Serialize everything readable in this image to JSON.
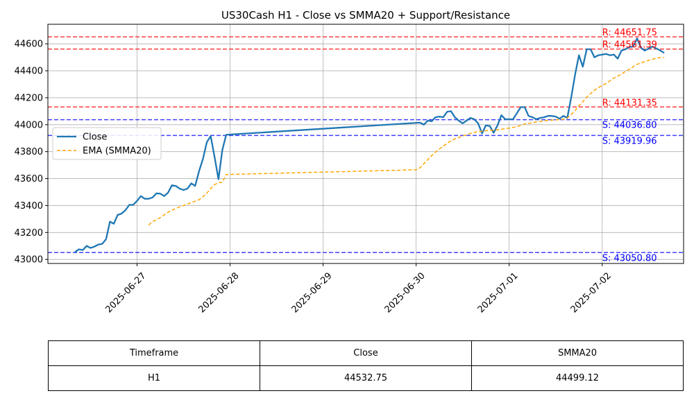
{
  "chart_data": {
    "type": "line",
    "title": "US30Cash H1 - Close vs SMMA20 + Support/Resistance",
    "xlabel": "",
    "ylabel": "",
    "x_range": [
      "2025-06-26T01:00",
      "2025-07-02T21:00"
    ],
    "ylim": [
      42970,
      44745
    ],
    "x_ticks": [
      "2025-06-27",
      "2025-06-28",
      "2025-06-29",
      "2025-06-30",
      "2025-07-01",
      "2025-07-02"
    ],
    "y_ticks": [
      43000,
      43200,
      43400,
      43600,
      43800,
      44000,
      44200,
      44400,
      44600
    ],
    "grid": true,
    "legend": {
      "placement": "center-left",
      "entries": [
        "Close",
        "EMA (SMMA20)"
      ]
    },
    "colors": {
      "close": "#1f77b4",
      "smma": "#ffa500",
      "resistance": "#ff0000",
      "support": "#0000ff"
    },
    "series": [
      {
        "name": "Close",
        "points": [
          [
            "2025-06-26T08:00",
            43055
          ],
          [
            "2025-06-26T09:00",
            43075
          ],
          [
            "2025-06-26T10:00",
            43070
          ],
          [
            "2025-06-26T11:00",
            43100
          ],
          [
            "2025-06-26T12:00",
            43085
          ],
          [
            "2025-06-26T13:00",
            43095
          ],
          [
            "2025-06-26T14:00",
            43110
          ],
          [
            "2025-06-26T15:00",
            43115
          ],
          [
            "2025-06-26T16:00",
            43150
          ],
          [
            "2025-06-26T17:00",
            43280
          ],
          [
            "2025-06-26T18:00",
            43265
          ],
          [
            "2025-06-26T19:00",
            43330
          ],
          [
            "2025-06-26T20:00",
            43340
          ],
          [
            "2025-06-26T21:00",
            43365
          ],
          [
            "2025-06-26T22:00",
            43405
          ],
          [
            "2025-06-26T23:00",
            43405
          ],
          [
            "2025-06-27T00:00",
            43435
          ],
          [
            "2025-06-27T01:00",
            43470
          ],
          [
            "2025-06-27T02:00",
            43450
          ],
          [
            "2025-06-27T03:00",
            43450
          ],
          [
            "2025-06-27T04:00",
            43460
          ],
          [
            "2025-06-27T05:00",
            43490
          ],
          [
            "2025-06-27T06:00",
            43488
          ],
          [
            "2025-06-27T07:00",
            43470
          ],
          [
            "2025-06-27T08:00",
            43495
          ],
          [
            "2025-06-27T09:00",
            43550
          ],
          [
            "2025-06-27T10:00",
            43545
          ],
          [
            "2025-06-27T11:00",
            43525
          ],
          [
            "2025-06-27T12:00",
            43515
          ],
          [
            "2025-06-27T13:00",
            43525
          ],
          [
            "2025-06-27T14:00",
            43565
          ],
          [
            "2025-06-27T15:00",
            43545
          ],
          [
            "2025-06-27T16:00",
            43655
          ],
          [
            "2025-06-27T17:00",
            43745
          ],
          [
            "2025-06-27T18:00",
            43870
          ],
          [
            "2025-06-27T19:00",
            43915
          ],
          [
            "2025-06-27T20:00",
            43760
          ],
          [
            "2025-06-27T21:00",
            43595
          ],
          [
            "2025-06-27T22:00",
            43810
          ],
          [
            "2025-06-27T23:00",
            43925
          ],
          [
            "2025-06-30T01:00",
            44015
          ],
          [
            "2025-06-30T02:00",
            44000
          ],
          [
            "2025-06-30T03:00",
            44030
          ],
          [
            "2025-06-30T04:00",
            44025
          ],
          [
            "2025-06-30T05:00",
            44055
          ],
          [
            "2025-06-30T06:00",
            44060
          ],
          [
            "2025-06-30T07:00",
            44055
          ],
          [
            "2025-06-30T08:00",
            44095
          ],
          [
            "2025-06-30T09:00",
            44100
          ],
          [
            "2025-06-30T10:00",
            44055
          ],
          [
            "2025-06-30T11:00",
            44030
          ],
          [
            "2025-06-30T12:00",
            44010
          ],
          [
            "2025-06-30T13:00",
            44030
          ],
          [
            "2025-06-30T14:00",
            44050
          ],
          [
            "2025-06-30T15:00",
            44040
          ],
          [
            "2025-06-30T16:00",
            44010
          ],
          [
            "2025-06-30T17:00",
            43935
          ],
          [
            "2025-06-30T18:00",
            43995
          ],
          [
            "2025-06-30T19:00",
            43990
          ],
          [
            "2025-06-30T20:00",
            43940
          ],
          [
            "2025-06-30T21:00",
            43995
          ],
          [
            "2025-06-30T22:00",
            44070
          ],
          [
            "2025-06-30T23:00",
            44040
          ],
          [
            "2025-07-01T00:00",
            44040
          ],
          [
            "2025-07-01T01:00",
            44040
          ],
          [
            "2025-07-01T02:00",
            44085
          ],
          [
            "2025-07-01T03:00",
            44130
          ],
          [
            "2025-07-01T04:00",
            44130
          ],
          [
            "2025-07-01T05:00",
            44065
          ],
          [
            "2025-07-01T06:00",
            44055
          ],
          [
            "2025-07-01T07:00",
            44040
          ],
          [
            "2025-07-01T08:00",
            44050
          ],
          [
            "2025-07-01T09:00",
            44055
          ],
          [
            "2025-07-01T10:00",
            44065
          ],
          [
            "2025-07-01T11:00",
            44065
          ],
          [
            "2025-07-01T12:00",
            44060
          ],
          [
            "2025-07-01T13:00",
            44045
          ],
          [
            "2025-07-01T14:00",
            44065
          ],
          [
            "2025-07-01T15:00",
            44050
          ],
          [
            "2025-07-01T16:00",
            44200
          ],
          [
            "2025-07-01T17:00",
            44370
          ],
          [
            "2025-07-01T18:00",
            44515
          ],
          [
            "2025-07-01T19:00",
            44430
          ],
          [
            "2025-07-01T20:00",
            44560
          ],
          [
            "2025-07-01T21:00",
            44560
          ],
          [
            "2025-07-01T22:00",
            44500
          ],
          [
            "2025-07-01T23:00",
            44515
          ],
          [
            "2025-07-02T00:00",
            44520
          ],
          [
            "2025-07-02T01:00",
            44525
          ],
          [
            "2025-07-02T02:00",
            44515
          ],
          [
            "2025-07-02T03:00",
            44520
          ],
          [
            "2025-07-02T04:00",
            44490
          ],
          [
            "2025-07-02T05:00",
            44550
          ],
          [
            "2025-07-02T06:00",
            44560
          ],
          [
            "2025-07-02T07:00",
            44575
          ],
          [
            "2025-07-02T08:00",
            44580
          ],
          [
            "2025-07-02T09:00",
            44640
          ],
          [
            "2025-07-02T10:00",
            44570
          ],
          [
            "2025-07-02T11:00",
            44550
          ],
          [
            "2025-07-02T12:00",
            44565
          ],
          [
            "2025-07-02T13:00",
            44580
          ],
          [
            "2025-07-02T14:00",
            44565
          ],
          [
            "2025-07-02T15:00",
            44550
          ],
          [
            "2025-07-02T16:00",
            44532.75
          ]
        ]
      },
      {
        "name": "EMA (SMMA20)",
        "points": [
          [
            "2025-06-27T03:00",
            43255
          ],
          [
            "2025-06-27T04:00",
            43280
          ],
          [
            "2025-06-27T05:00",
            43295
          ],
          [
            "2025-06-27T06:00",
            43310
          ],
          [
            "2025-06-27T07:00",
            43330
          ],
          [
            "2025-06-27T08:00",
            43350
          ],
          [
            "2025-06-27T09:00",
            43365
          ],
          [
            "2025-06-27T10:00",
            43378
          ],
          [
            "2025-06-27T11:00",
            43390
          ],
          [
            "2025-06-27T12:00",
            43400
          ],
          [
            "2025-06-27T13:00",
            43410
          ],
          [
            "2025-06-27T14:00",
            43422
          ],
          [
            "2025-06-27T15:00",
            43432
          ],
          [
            "2025-06-27T16:00",
            43443
          ],
          [
            "2025-06-27T17:00",
            43465
          ],
          [
            "2025-06-27T18:00",
            43492
          ],
          [
            "2025-06-27T19:00",
            43525
          ],
          [
            "2025-06-27T20:00",
            43555
          ],
          [
            "2025-06-27T21:00",
            43570
          ],
          [
            "2025-06-27T22:00",
            43572
          ],
          [
            "2025-06-27T23:00",
            43630
          ],
          [
            "2025-06-30T00:00",
            43665
          ],
          [
            "2025-06-30T01:00",
            43680
          ],
          [
            "2025-06-30T02:00",
            43710
          ],
          [
            "2025-06-30T03:00",
            43740
          ],
          [
            "2025-06-30T04:00",
            43770
          ],
          [
            "2025-06-30T05:00",
            43795
          ],
          [
            "2025-06-30T06:00",
            43820
          ],
          [
            "2025-06-30T07:00",
            43840
          ],
          [
            "2025-06-30T08:00",
            43862
          ],
          [
            "2025-06-30T09:00",
            43880
          ],
          [
            "2025-06-30T10:00",
            43895
          ],
          [
            "2025-06-30T11:00",
            43905
          ],
          [
            "2025-06-30T12:00",
            43915
          ],
          [
            "2025-06-30T13:00",
            43925
          ],
          [
            "2025-06-30T14:00",
            43935
          ],
          [
            "2025-06-30T15:00",
            43942
          ],
          [
            "2025-06-30T16:00",
            43950
          ],
          [
            "2025-06-30T17:00",
            43950
          ],
          [
            "2025-06-30T18:00",
            43955
          ],
          [
            "2025-06-30T19:00",
            43958
          ],
          [
            "2025-06-30T20:00",
            43960
          ],
          [
            "2025-06-30T21:00",
            43962
          ],
          [
            "2025-06-30T22:00",
            43966
          ],
          [
            "2025-06-30T23:00",
            43970
          ],
          [
            "2025-07-01T00:00",
            43975
          ],
          [
            "2025-07-01T01:00",
            43980
          ],
          [
            "2025-07-01T02:00",
            43985
          ],
          [
            "2025-07-01T03:00",
            43995
          ],
          [
            "2025-07-01T04:00",
            44005
          ],
          [
            "2025-07-01T05:00",
            44010
          ],
          [
            "2025-07-01T06:00",
            44015
          ],
          [
            "2025-07-01T07:00",
            44020
          ],
          [
            "2025-07-01T08:00",
            44024
          ],
          [
            "2025-07-01T09:00",
            44028
          ],
          [
            "2025-07-01T10:00",
            44031
          ],
          [
            "2025-07-01T11:00",
            44034
          ],
          [
            "2025-07-01T12:00",
            44036
          ],
          [
            "2025-07-01T13:00",
            44037
          ],
          [
            "2025-07-01T14:00",
            44040
          ],
          [
            "2025-07-01T15:00",
            44050
          ],
          [
            "2025-07-01T16:00",
            44075
          ],
          [
            "2025-07-01T17:00",
            44105
          ],
          [
            "2025-07-01T18:00",
            44140
          ],
          [
            "2025-07-01T19:00",
            44170
          ],
          [
            "2025-07-01T20:00",
            44205
          ],
          [
            "2025-07-01T21:00",
            44230
          ],
          [
            "2025-07-01T22:00",
            44255
          ],
          [
            "2025-07-01T23:00",
            44275
          ],
          [
            "2025-07-02T00:00",
            44290
          ],
          [
            "2025-07-02T01:00",
            44305
          ],
          [
            "2025-07-02T02:00",
            44325
          ],
          [
            "2025-07-02T03:00",
            44345
          ],
          [
            "2025-07-02T04:00",
            44360
          ],
          [
            "2025-07-02T05:00",
            44375
          ],
          [
            "2025-07-02T06:00",
            44395
          ],
          [
            "2025-07-02T07:00",
            44410
          ],
          [
            "2025-07-02T08:00",
            44430
          ],
          [
            "2025-07-02T09:00",
            44448
          ],
          [
            "2025-07-02T10:00",
            44458
          ],
          [
            "2025-07-02T11:00",
            44468
          ],
          [
            "2025-07-02T12:00",
            44478
          ],
          [
            "2025-07-02T13:00",
            44485
          ],
          [
            "2025-07-02T14:00",
            44493
          ],
          [
            "2025-07-02T15:00",
            44498
          ],
          [
            "2025-07-02T16:00",
            44499.12
          ]
        ]
      }
    ],
    "levels": [
      {
        "kind": "resistance",
        "value": 44651.75,
        "label": "R: 44651.75"
      },
      {
        "kind": "resistance",
        "value": 44561.39,
        "label": "R: 44561.39"
      },
      {
        "kind": "resistance",
        "value": 44131.35,
        "label": "R: 44131.35"
      },
      {
        "kind": "support",
        "value": 44036.8,
        "label": "S: 44036.80"
      },
      {
        "kind": "support",
        "value": 43919.96,
        "label": "S: 43919.96"
      },
      {
        "kind": "support",
        "value": 43050.8,
        "label": "S: 43050.80"
      }
    ]
  },
  "summary_table": {
    "headers": [
      "Timeframe",
      "Close",
      "SMMA20"
    ],
    "row": [
      "H1",
      "44532.75",
      "44499.12"
    ]
  }
}
